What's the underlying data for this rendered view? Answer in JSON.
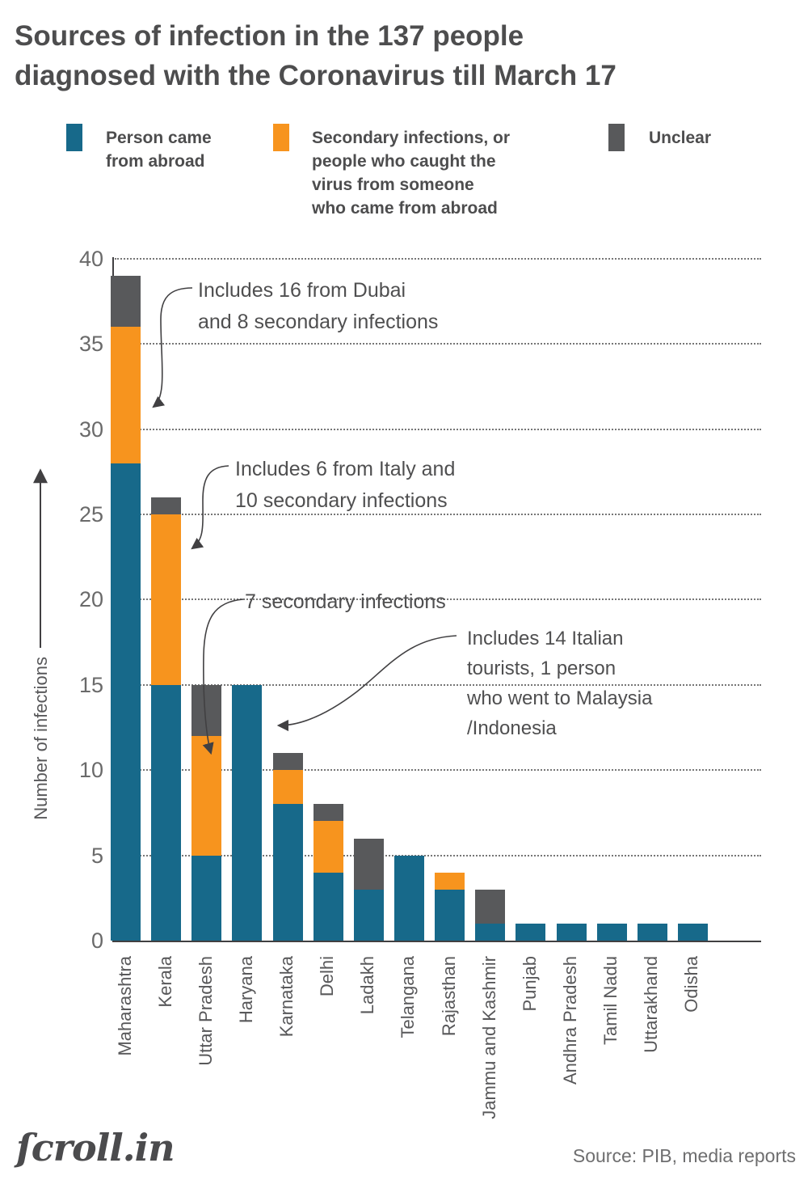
{
  "title": {
    "line1": "Sources of infection in the 137 people",
    "line2": "diagnosed with the Coronavirus till March 17"
  },
  "legend": {
    "items": [
      {
        "name": "Person came from abroad",
        "lines": [
          "Person came",
          "from abroad"
        ]
      },
      {
        "name": "Secondary infections, or people who caught the virus from someone who came from abroad",
        "lines": [
          "Secondary infections, or",
          "people who caught the",
          "virus from someone",
          "who came from abroad"
        ]
      },
      {
        "name": "Unclear",
        "lines": [
          "Unclear"
        ]
      }
    ]
  },
  "chart_data": {
    "type": "bar",
    "stacked": true,
    "title": "Sources of infection in the 137 people diagnosed with the Coronavirus till March 17",
    "categories": [
      "Maharashtra",
      "Kerala",
      "Uttar Pradesh",
      "Haryana",
      "Karnataka",
      "Delhi",
      "Ladakh",
      "Telangana",
      "Rajasthan",
      "Jammu and Kashmir",
      "Punjab",
      "Andhra Pradesh",
      "Tamil Nadu",
      "Uttarakhand",
      "Odisha"
    ],
    "series": [
      {
        "name": "Person came from abroad",
        "color": "#17698A",
        "values": [
          28,
          15,
          5,
          15,
          8,
          4,
          3,
          5,
          3,
          1,
          1,
          1,
          1,
          1,
          1
        ]
      },
      {
        "name": "Secondary infections, or people who caught the virus from someone who came from abroad",
        "color": "#F7941E",
        "values": [
          8,
          10,
          7,
          0,
          2,
          3,
          0,
          0,
          1,
          0,
          0,
          0,
          0,
          0,
          0
        ]
      },
      {
        "name": "Unclear",
        "color": "#58595B",
        "values": [
          3,
          1,
          3,
          0,
          1,
          1,
          3,
          0,
          0,
          2,
          0,
          0,
          0,
          0,
          0
        ]
      }
    ],
    "totals": [
      39,
      26,
      15,
      15,
      11,
      8,
      6,
      5,
      4,
      3,
      1,
      1,
      1,
      1,
      1
    ],
    "xlabel": "",
    "ylabel": "Number of infections",
    "yticks": [
      0,
      5,
      10,
      15,
      20,
      25,
      30,
      35,
      40
    ],
    "ylim": [
      0,
      40
    ],
    "grid": "horizontal dotted",
    "legend_position": "top",
    "annotations": [
      {
        "lines": [
          "Includes 16 from Dubai",
          "and 8 secondary infections"
        ],
        "target": "Maharashtra"
      },
      {
        "lines": [
          "Includes 6 from Italy and",
          "10 secondary infections"
        ],
        "target": "Kerala"
      },
      {
        "lines": [
          "7 secondary infections"
        ],
        "target": "Uttar Pradesh"
      },
      {
        "lines": [
          "Includes 14 Italian",
          "tourists, 1 person",
          "who went to Malaysia",
          "/Indonesia"
        ],
        "target": "Haryana"
      }
    ]
  },
  "footer": {
    "logo": "ſcroll.in",
    "source": "Source: PIB, media reports"
  }
}
